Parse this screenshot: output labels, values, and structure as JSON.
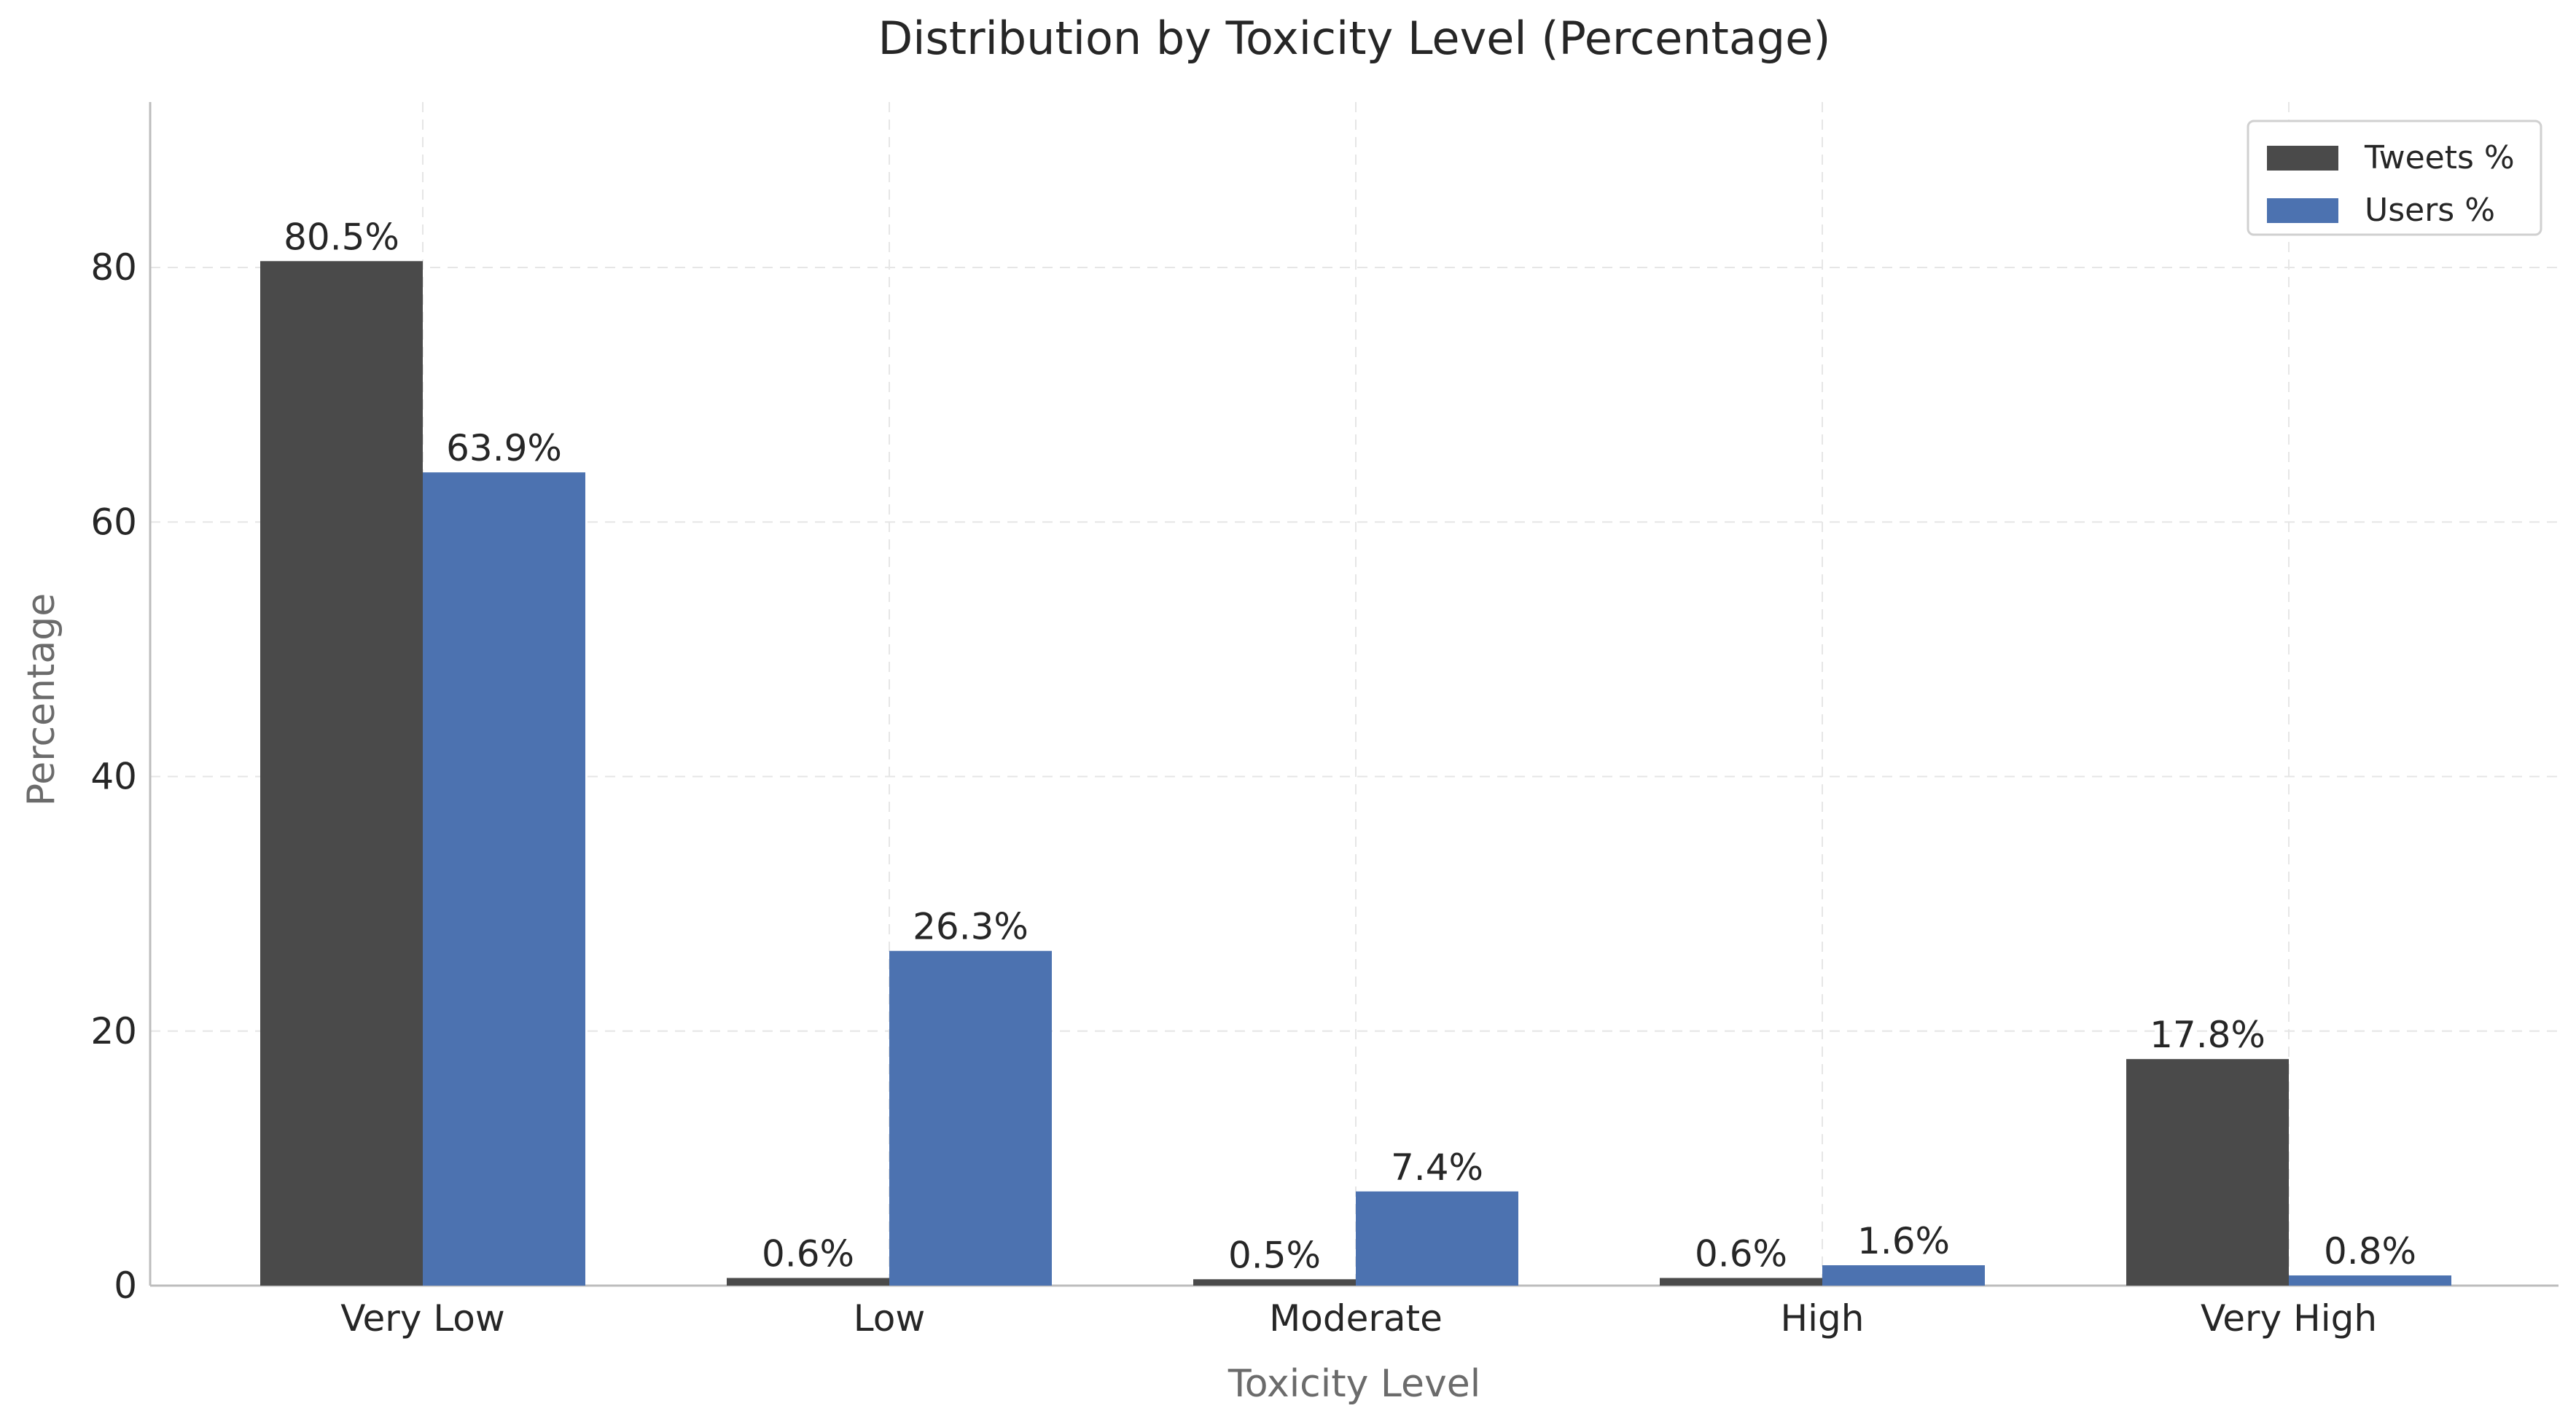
{
  "chart_data": {
    "type": "bar",
    "title": "Distribution by Toxicity Level (Percentage)",
    "xlabel": "Toxicity Level",
    "ylabel": "Percentage",
    "categories": [
      "Very Low",
      "Low",
      "Moderate",
      "High",
      "Very High"
    ],
    "series": [
      {
        "name": "Tweets %",
        "color": "#4a4a4a",
        "values": [
          80.5,
          0.6,
          0.5,
          0.6,
          17.8
        ],
        "labels": [
          "80.5%",
          "0.6%",
          "0.5%",
          "0.6%",
          "17.8%"
        ]
      },
      {
        "name": "Users %",
        "color": "#4c72b0",
        "values": [
          63.9,
          26.3,
          7.4,
          1.6,
          0.8
        ],
        "labels": [
          "63.9%",
          "26.3%",
          "7.4%",
          "1.6%",
          "0.8%"
        ]
      }
    ],
    "ylim": [
      0,
      93
    ],
    "yticks": [
      0,
      20,
      40,
      60,
      80
    ],
    "grid": true,
    "legend_position": "top-right"
  }
}
